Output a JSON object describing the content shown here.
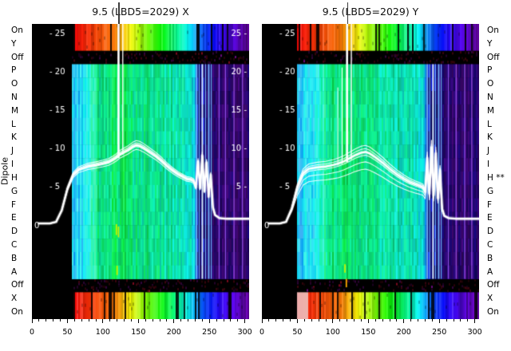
{
  "figure": {
    "dipole_label": "Dipole",
    "background": "#ffffff",
    "plot_background": "#000000",
    "trace_color": "#ffffff"
  },
  "chart_data": [
    {
      "type": "heatmap",
      "id": "X",
      "title": "9.5 (LBD5=2029) X",
      "colormap": "rainbow (low=violet, high=red) on black",
      "overlay": "white multi-trace profile with vertical spike",
      "x_range": [
        0,
        306
      ],
      "x_ticks": [
        0,
        50,
        100,
        150,
        200,
        250,
        300
      ],
      "x_minor_step": 10,
      "y_value_range": [
        0,
        25
      ],
      "y_categories": [
        "On",
        "Y",
        "Off",
        "P",
        "O",
        "N",
        "M",
        "L",
        "K",
        "J",
        "I",
        "H",
        "G",
        "F",
        "E",
        "D",
        "C",
        "B",
        "A",
        "Off",
        "X",
        "On"
      ],
      "inner_left_ticks": [
        {
          "v": 25,
          "text": "- 25"
        },
        {
          "v": 20,
          "text": "- 20"
        },
        {
          "v": 15,
          "text": "- 15"
        },
        {
          "v": 10,
          "text": "- 10"
        },
        {
          "v": 5,
          "text": "- 5"
        }
      ],
      "inner_right_ticks": [
        {
          "v": 25,
          "text": "25 -"
        },
        {
          "v": 20,
          "text": "20 -"
        },
        {
          "v": 15,
          "text": "15 -"
        },
        {
          "v": 10,
          "text": "10 -"
        },
        {
          "v": 5,
          "text": "5 -"
        }
      ],
      "zero_label": "0",
      "seed": 7,
      "band_start": 56,
      "band_stops": [
        [
          0,
          null
        ],
        [
          56,
          null
        ],
        [
          58,
          1.0
        ],
        [
          115,
          0.9
        ],
        [
          150,
          0.72
        ],
        [
          185,
          0.55
        ],
        [
          215,
          0.38
        ],
        [
          240,
          0.2
        ],
        [
          265,
          0.1
        ],
        [
          306,
          0.0
        ]
      ],
      "main_stops": [
        [
          0,
          null
        ],
        [
          54,
          null
        ],
        [
          56,
          0.3
        ],
        [
          70,
          0.34
        ],
        [
          85,
          0.42
        ],
        [
          100,
          0.46
        ],
        [
          120,
          0.48
        ],
        [
          145,
          0.45
        ],
        [
          170,
          0.43
        ],
        [
          195,
          0.41
        ],
        [
          215,
          0.39
        ],
        [
          228,
          0.36
        ],
        [
          231,
          0.12
        ],
        [
          250,
          0.1
        ],
        [
          257,
          0.06
        ],
        [
          290,
          0.05
        ],
        [
          306,
          0.07
        ]
      ],
      "bright_zone": [
        56,
        92
      ],
      "bottom_band_bright_start": false,
      "stripes_blue": [
        231,
        235,
        239,
        244,
        248,
        252
      ],
      "stripes_purple": [
        263,
        272,
        284,
        296
      ],
      "accents": [
        {
          "x": 118,
          "v1": 0.2,
          "v2": -1.2,
          "color": "#c8f000"
        },
        {
          "x": 121,
          "v1": -0.1,
          "v2": -1.5,
          "color": "#c8f000"
        },
        {
          "x": 119,
          "v1": -5.2,
          "v2": -6.4,
          "color": "#c8f000"
        }
      ],
      "trace": {
        "x": [
          10,
          25,
          34,
          42,
          50,
          58,
          66,
          78,
          90,
          100,
          108,
          114,
          119,
          124,
          130,
          136,
          142,
          147,
          152,
          158,
          166,
          174,
          182,
          190,
          198,
          206,
          212,
          218,
          224,
          228,
          231,
          234,
          237,
          240,
          243,
          246,
          249,
          252,
          255,
          258,
          264,
          275,
          290,
          306
        ],
        "v": [
          0.3,
          0.3,
          0.5,
          2.0,
          4.8,
          6.6,
          7.3,
          7.7,
          7.9,
          8.1,
          8.3,
          8.6,
          8.9,
          9.3,
          9.6,
          9.9,
          10.3,
          10.5,
          10.4,
          10.1,
          9.6,
          9.1,
          8.5,
          7.8,
          7.2,
          6.7,
          6.4,
          6.1,
          6.0,
          5.8,
          5.0,
          8.3,
          4.9,
          9.1,
          4.5,
          8.2,
          3.8,
          6.6,
          2.4,
          1.4,
          1.0,
          0.9,
          0.9,
          0.9
        ]
      },
      "trace_factors": [
        0.94,
        0.98,
        1.03,
        1.06
      ],
      "spikes": [
        {
          "x": 122,
          "w": 2.6,
          "top": 0
        },
        {
          "x": 128,
          "w": 1.3,
          "top": 0
        }
      ],
      "title_artifact_x": 122
    },
    {
      "type": "heatmap",
      "id": "Y",
      "title": "9.5 (LBD5=2029) Y",
      "colormap": "rainbow (low=violet, high=red) on black",
      "overlay": "white multi-trace profile with vertical spike",
      "x_range": [
        0,
        306
      ],
      "x_ticks": [
        0,
        50,
        100,
        150,
        200,
        250,
        300
      ],
      "x_minor_step": 10,
      "y_value_range": [
        0,
        25
      ],
      "y_categories": [
        "On",
        "Y",
        "Off",
        "P",
        "O",
        "N",
        "M",
        "L",
        "K",
        "J",
        "I",
        "H **",
        "G",
        "F",
        "E",
        "D",
        "C",
        "B",
        "A",
        "Off",
        "X",
        "On"
      ],
      "inner_left_ticks": [
        {
          "v": 25,
          "text": "- 25"
        },
        {
          "v": 20,
          "text": "- 20"
        },
        {
          "v": 15,
          "text": "- 15"
        },
        {
          "v": 10,
          "text": "- 10"
        },
        {
          "v": 5,
          "text": "- 5"
        }
      ],
      "inner_right_ticks": [],
      "zero_label": "0",
      "seed": 13,
      "band_start": 48,
      "band_stops": [
        [
          0,
          null
        ],
        [
          46,
          null
        ],
        [
          48,
          1.0
        ],
        [
          110,
          0.9
        ],
        [
          148,
          0.72
        ],
        [
          185,
          0.55
        ],
        [
          215,
          0.38
        ],
        [
          240,
          0.2
        ],
        [
          265,
          0.1
        ],
        [
          306,
          0.0
        ]
      ],
      "main_stops": [
        [
          0,
          null
        ],
        [
          46,
          null
        ],
        [
          48,
          0.3
        ],
        [
          70,
          0.35
        ],
        [
          85,
          0.42
        ],
        [
          100,
          0.46
        ],
        [
          120,
          0.47
        ],
        [
          145,
          0.44
        ],
        [
          170,
          0.42
        ],
        [
          195,
          0.4
        ],
        [
          215,
          0.38
        ],
        [
          228,
          0.35
        ],
        [
          231,
          0.12
        ],
        [
          250,
          0.1
        ],
        [
          257,
          0.06
        ],
        [
          290,
          0.05
        ],
        [
          306,
          0.07
        ]
      ],
      "bright_zone": [
        48,
        88
      ],
      "bottom_band_bright_start": true,
      "stripes_blue": [
        232,
        236,
        240,
        244,
        248,
        252
      ],
      "stripes_purple": [
        262,
        273,
        285,
        295
      ],
      "accents": [
        {
          "x": 118,
          "v1": -6.9,
          "v2": -8.0,
          "color": "#ffaa00"
        },
        {
          "x": 116,
          "v1": -5.0,
          "v2": -6.1,
          "color": "#c8f000"
        }
      ],
      "trace": {
        "x": [
          10,
          25,
          34,
          42,
          50,
          58,
          66,
          78,
          90,
          100,
          108,
          116,
          124,
          132,
          140,
          146,
          152,
          160,
          170,
          180,
          190,
          200,
          208,
          216,
          222,
          227,
          230,
          233,
          236,
          239,
          242,
          245,
          248,
          251,
          254,
          257,
          263,
          275,
          290,
          306
        ],
        "v": [
          0.3,
          0.3,
          0.5,
          2.2,
          5.0,
          6.8,
          7.4,
          7.6,
          7.7,
          7.9,
          8.1,
          8.4,
          8.8,
          9.2,
          9.5,
          9.6,
          9.4,
          8.9,
          8.2,
          7.4,
          6.7,
          6.1,
          5.7,
          5.4,
          5.2,
          5.0,
          4.4,
          8.8,
          4.2,
          10.2,
          4.0,
          9.4,
          3.6,
          7.2,
          2.2,
          1.3,
          1.0,
          0.9,
          0.9,
          0.9
        ]
      },
      "trace_factors": [
        0.74,
        0.85,
        0.95,
        1.05,
        1.1
      ],
      "spikes": [
        {
          "x": 120,
          "w": 2.6,
          "top": 0
        },
        {
          "x": 126,
          "w": 1.4,
          "top": 0
        },
        {
          "x": 107,
          "w": 1.0,
          "top": 80
        },
        {
          "x": 113,
          "w": 1.1,
          "top": 55
        }
      ],
      "title_artifact_x": 120
    }
  ]
}
